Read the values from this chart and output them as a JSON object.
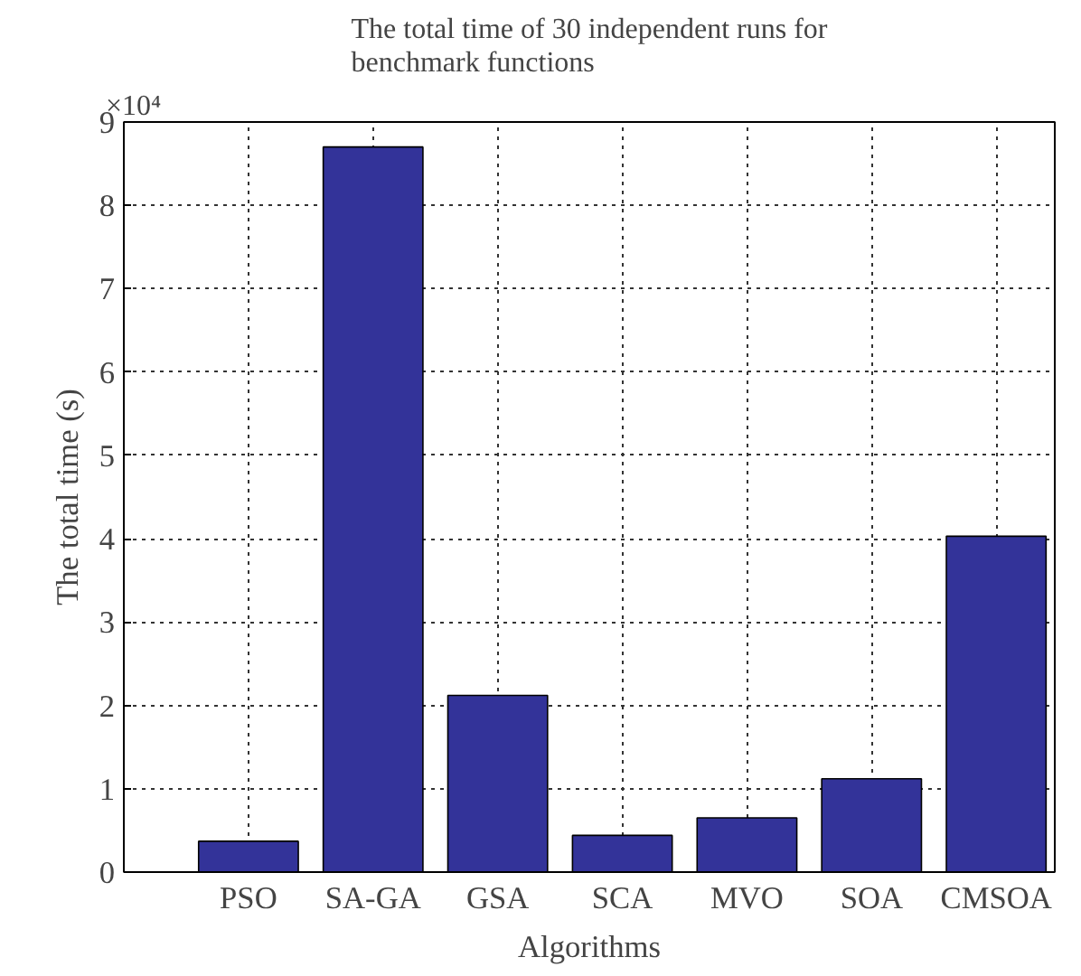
{
  "chart_data": {
    "type": "bar",
    "title": "The total time of 30 independent runs for\nbenchmark functions",
    "xlabel": "Algorithms",
    "ylabel": "The total time (s)",
    "categories": [
      "PSO",
      "SA-GA",
      "GSA",
      "SCA",
      "MVO",
      "SOA",
      "CMSOA"
    ],
    "values": [
      0.37,
      8.7,
      2.12,
      0.44,
      0.65,
      1.12,
      4.03
    ],
    "color": "#333399",
    "ylim": [
      0,
      9
    ],
    "yticks": [
      0,
      1,
      2,
      3,
      4,
      5,
      6,
      7,
      8,
      9
    ],
    "grid": true,
    "annotations": [
      "×10⁴"
    ]
  }
}
